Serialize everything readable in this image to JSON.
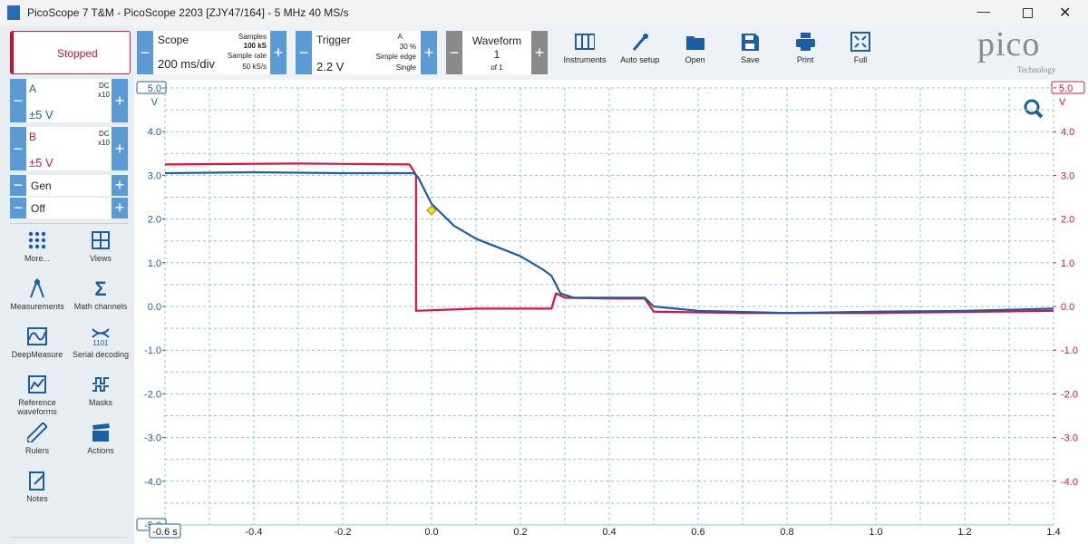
{
  "window": {
    "title": "PicoScope 7 T&M  - PicoScope 2203 [ZJY47/164] - 5 MHz 40 MS/s",
    "logo": "pico",
    "logo_subtitle": "Technology"
  },
  "status": "Stopped",
  "channels": [
    {
      "coupling": "DC",
      "probe": "x10",
      "range": "±5 V"
    },
    {
      "coupling": "DC",
      "probe": "x10",
      "range": "±5 V"
    }
  ],
  "generator": {
    "name": "Gen",
    "state": "Off"
  },
  "tools": [
    "More...",
    "Views",
    "Measurements",
    "Math channels",
    "DeepMeasure",
    "Serial decoding",
    "Reference waveforms",
    "Masks",
    "Rulers",
    "Actions",
    "Notes"
  ],
  "scope": {
    "title": "Scope",
    "timebase": "200 ms/div",
    "samples_label": "Samples",
    "samples": "100 kS",
    "rate_label": "Sample rate",
    "rate": "50 kS/s"
  },
  "trigger": {
    "title": "Trigger",
    "level": "2.2 V",
    "channel": "A",
    "pretrigger": "30 %",
    "mode": "Simple edge",
    "type": "Single"
  },
  "waveform": {
    "title": "Waveform",
    "index": "1",
    "count": "of 1"
  },
  "toolbar": [
    "Instruments",
    "Auto setup",
    "Open",
    "Save",
    "Print",
    "Full"
  ],
  "chart_data": {
    "type": "line",
    "y_label": "V",
    "y2_label": "V",
    "grid": true,
    "xlim": [
      -0.6,
      1.4
    ],
    "xticks": [
      {
        "value": -0.6,
        "label": "-0.6 s"
      },
      -0.4,
      -0.2,
      {
        "value": 0,
        "label": "0.0"
      },
      0.2,
      0.4,
      0.6,
      0.8,
      {
        "value": 1,
        "label": "1.0"
      },
      1.2,
      1.4
    ],
    "ylim": [
      -5,
      5
    ],
    "yticks": [
      {
        "value": -5,
        "label": "-5.0"
      },
      {
        "value": -4,
        "label": "-4.0"
      },
      {
        "value": -3,
        "label": "-3.0"
      },
      {
        "value": -2,
        "label": "-2.0"
      },
      {
        "value": -1,
        "label": "-1.0"
      },
      {
        "value": 0,
        "label": "0.0"
      },
      {
        "value": 1,
        "label": "1.0"
      },
      {
        "value": 2,
        "label": "2.0"
      },
      {
        "value": 3,
        "label": "3.0"
      },
      {
        "value": 4,
        "label": "4.0"
      },
      {
        "value": 5,
        "label": "5.0"
      }
    ],
    "y2lim": [
      -5,
      5
    ],
    "y2ticks": [
      {
        "value": -4,
        "label": "-4.0"
      },
      {
        "value": -3,
        "label": "-3.0"
      },
      {
        "value": -2,
        "label": "-2.0"
      },
      {
        "value": -1,
        "label": "-1.0"
      },
      {
        "value": 0,
        "label": "0.0"
      },
      {
        "value": 1,
        "label": "1.0"
      },
      {
        "value": 2,
        "label": "2.0"
      },
      {
        "value": 3,
        "label": "3.0"
      },
      {
        "value": 4,
        "label": "4.0"
      },
      {
        "value": 5,
        "label": "5.0"
      }
    ],
    "trigger_point": {
      "x": 0,
      "y": 2.2
    },
    "series": [
      {
        "name": "A",
        "color": "#1b5ea3",
        "x": [
          -0.6,
          -0.4,
          -0.2,
          -0.04,
          -0.03,
          -0.02,
          0,
          0.05,
          0.1,
          0.15,
          0.2,
          0.25,
          0.27,
          0.29,
          0.32,
          0.4,
          0.48,
          0.5,
          0.6,
          0.8,
          1.0,
          1.2,
          1.4
        ],
        "values": [
          3.05,
          3.07,
          3.05,
          3.05,
          2.95,
          2.75,
          2.35,
          1.85,
          1.55,
          1.35,
          1.15,
          0.85,
          0.7,
          0.3,
          0.2,
          0.2,
          0.2,
          0.0,
          -0.1,
          -0.15,
          -0.12,
          -0.1,
          -0.05
        ]
      },
      {
        "name": "B",
        "color": "#e0103a",
        "axis": "y2",
        "x": [
          -0.6,
          -0.3,
          -0.05,
          -0.04,
          -0.035,
          -0.035,
          0.1,
          0.27,
          0.28,
          0.3,
          0.4,
          0.48,
          0.5,
          0.7,
          1.0,
          1.4
        ],
        "values": [
          3.25,
          3.27,
          3.25,
          3.1,
          3.0,
          -0.1,
          -0.05,
          -0.05,
          0.3,
          0.2,
          0.18,
          0.18,
          -0.12,
          -0.15,
          -0.15,
          -0.1
        ]
      }
    ]
  }
}
